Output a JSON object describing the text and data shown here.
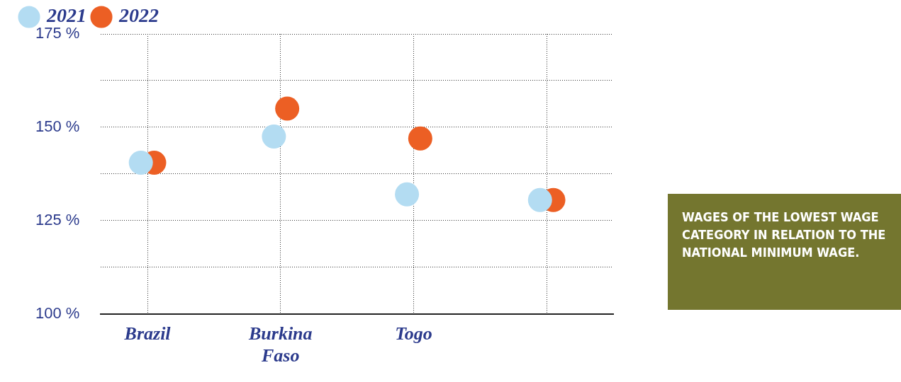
{
  "chart_data": {
    "type": "scatter",
    "categories": [
      "Brazil",
      "Burkina Faso",
      "Togo",
      null
    ],
    "series": [
      {
        "name": "2021",
        "color": "#b3dcf2",
        "values": [
          140.5,
          147.5,
          132,
          130.5
        ]
      },
      {
        "name": "2022",
        "color": "#ec5f24",
        "values": [
          140.5,
          155,
          147,
          130.5
        ]
      }
    ],
    "ylim": [
      100,
      175
    ],
    "yticks": [
      {
        "value": 100,
        "label": "100 %"
      },
      {
        "value": 112.5,
        "label": null
      },
      {
        "value": 125,
        "label": "125 %"
      },
      {
        "value": 137.5,
        "label": null
      },
      {
        "value": 150,
        "label": "150 %"
      },
      {
        "value": 162.5,
        "label": null
      },
      {
        "value": 175,
        "label": "175 %"
      }
    ],
    "grid": true,
    "legend": "top left",
    "marker": "circle",
    "annotations": [
      "WAGES OF THE LOWEST WAGE CATEGORY IN RELATION TO THE NATIONAL MINIMUM WAGE."
    ]
  }
}
